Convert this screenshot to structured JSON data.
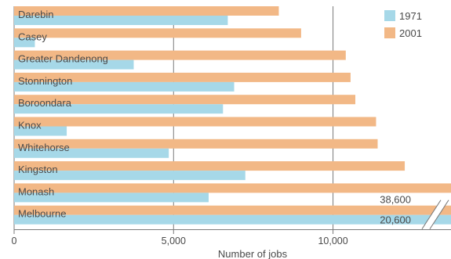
{
  "chart_data": {
    "type": "bar",
    "orientation": "horizontal",
    "xlabel": "Number of jobs",
    "xlim": [
      0,
      13700
    ],
    "xticks": [
      0,
      5000,
      10000
    ],
    "xtick_labels": [
      "0",
      "5,000",
      "10,000"
    ],
    "grid": "vertical",
    "legend_position": "top-right",
    "categories": [
      "Darebin",
      "Casey",
      "Greater Dandenong",
      "Stonnington",
      "Boroondara",
      "Knox",
      "Whitehorse",
      "Kingston",
      "Monash",
      "Melbourne"
    ],
    "series": [
      {
        "name": "1971",
        "color": "#a6d8e8",
        "values": [
          6700,
          650,
          3750,
          6900,
          6550,
          1650,
          4850,
          7250,
          6100,
          20600
        ]
      },
      {
        "name": "2001",
        "color": "#f2b886",
        "values": [
          8300,
          9000,
          10400,
          10550,
          10700,
          11350,
          11400,
          12250,
          13700,
          38600
        ]
      }
    ],
    "annotations": [
      {
        "text": "38,600",
        "series": "2001",
        "category": "Melbourne"
      },
      {
        "text": "20,600",
        "series": "1971",
        "category": "Melbourne"
      }
    ],
    "axis_break": true
  }
}
